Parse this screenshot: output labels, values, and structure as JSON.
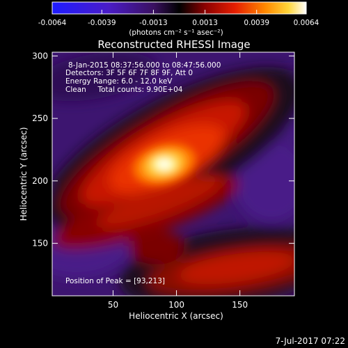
{
  "colorbar": {
    "ticks": [
      "-0.0064",
      "-0.0039",
      "-0.0013",
      "0.0013",
      "0.0039",
      "0.0064"
    ],
    "tick_values": [
      -0.0064,
      -0.0039,
      -0.0013,
      0.0013,
      0.0039,
      0.0064
    ],
    "label": "(photons cm⁻² s⁻¹ asec⁻²)"
  },
  "chart_data": {
    "type": "heatmap",
    "title": "Reconstructed RHESSI Image",
    "xlabel": "Heliocentric X (arcsec)",
    "ylabel": "Heliocentric Y (arcsec)",
    "xlim": [
      2,
      193
    ],
    "ylim": [
      108,
      303
    ],
    "x_ticks": [
      50,
      100,
      150
    ],
    "y_ticks": [
      150,
      200,
      250,
      300
    ],
    "value_range": [
      -0.0064,
      0.0064
    ],
    "colormap": "heat (blue → violet → black → red → orange → yellow → white)",
    "peak_position": [
      93,
      213
    ],
    "annotations": [
      "8-Jan-2015 08:37:56.000 to 08:47:56.000",
      "Detectors: 3F 5F 6F 7F 8F 9F, Att 0",
      "Energy Range: 6.0 - 12.0 keV",
      "Clean     Total counts: 9.90E+04",
      "Position of Peak = [93,213]"
    ]
  },
  "footer": {
    "timestamp": "7-Jul-2017 07:22"
  },
  "colors": {
    "background": "#000000",
    "text": "#ffffff"
  }
}
